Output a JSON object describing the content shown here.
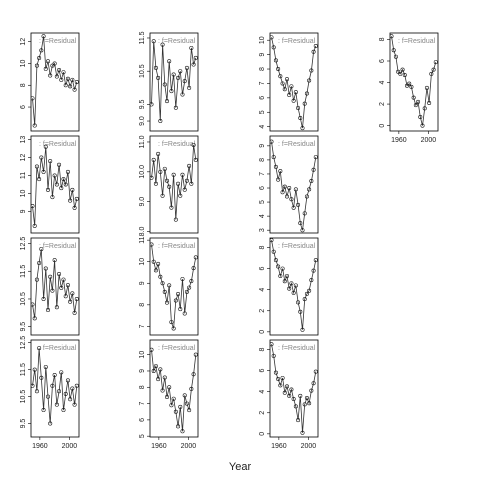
{
  "xlabel": "Year",
  "chart_data": [
    {
      "type": "line",
      "strip": ": f=Residual",
      "x": [
        1950,
        1953,
        1956,
        1959,
        1962,
        1965,
        1968,
        1971,
        1974,
        1977,
        1980,
        1983,
        1986,
        1989,
        1992,
        1995,
        1998,
        2001,
        2004,
        2007,
        2010
      ],
      "xlim": [
        1948,
        2013
      ],
      "ylim": [
        3.8,
        12.8
      ],
      "yticks": [
        6,
        8,
        10,
        12
      ],
      "values": [
        6.8,
        4.3,
        9.8,
        10.5,
        11.2,
        12.5,
        9.5,
        10.2,
        8.9,
        9.8,
        10.0,
        8.8,
        9.4,
        8.5,
        9.2,
        8.0,
        8.6,
        7.9,
        8.5,
        7.6,
        8.3
      ]
    },
    {
      "type": "line",
      "strip": ": f=Residual",
      "x": [
        1950,
        1953,
        1956,
        1959,
        1962,
        1965,
        1968,
        1971,
        1974,
        1977,
        1980,
        1983,
        1986,
        1989,
        1992,
        1995,
        1998,
        2001,
        2004,
        2007,
        2010
      ],
      "xlim": [
        1948,
        2013
      ],
      "ylim": [
        7.8,
        13.2
      ],
      "yticks": [
        9,
        10,
        11,
        12,
        13
      ],
      "values": [
        9.3,
        8.2,
        11.5,
        10.8,
        12.0,
        11.2,
        12.6,
        10.2,
        11.8,
        9.8,
        11.0,
        10.5,
        11.6,
        10.3,
        10.8,
        10.5,
        11.2,
        9.6,
        10.2,
        9.2,
        9.7
      ]
    },
    {
      "type": "line",
      "strip": ": f=Residual",
      "x": [
        1950,
        1953,
        1956,
        1959,
        1962,
        1965,
        1968,
        1971,
        1974,
        1977,
        1980,
        1983,
        1986,
        1989,
        1992,
        1995,
        1998,
        2001,
        2004,
        2007,
        2010
      ],
      "xlim": [
        1948,
        2013
      ],
      "ylim": [
        9.2,
        12.7
      ],
      "yticks": [
        9.5,
        10.5,
        11.5,
        12.5
      ],
      "values": [
        10.3,
        9.8,
        11.2,
        11.8,
        12.3,
        10.5,
        11.6,
        10.1,
        11.3,
        10.8,
        11.9,
        10.2,
        11.4,
        10.9,
        11.2,
        10.6,
        11.0,
        10.4,
        10.7,
        10.0,
        10.5
      ]
    },
    {
      "type": "line",
      "strip": ": f=Residual",
      "x": [
        1950,
        1953,
        1956,
        1959,
        1962,
        1965,
        1968,
        1971,
        1974,
        1977,
        1980,
        1983,
        1986,
        1989,
        1992,
        1995,
        1998,
        2001,
        2004,
        2007,
        2010
      ],
      "xlim": [
        1948,
        2013
      ],
      "ylim": [
        9.0,
        12.6
      ],
      "yticks": [
        9.5,
        10.5,
        11.5,
        12.5
      ],
      "xticks": [
        1960,
        2000
      ],
      "values": [
        10.9,
        11.5,
        10.7,
        12.3,
        11.2,
        10.0,
        11.6,
        10.5,
        9.5,
        10.9,
        11.3,
        10.2,
        10.7,
        11.4,
        10.0,
        10.6,
        11.1,
        10.4,
        10.8,
        10.2,
        10.9
      ]
    },
    {
      "type": "line",
      "strip": ": f=Residual",
      "x": [
        1950,
        1953,
        1956,
        1959,
        1962,
        1965,
        1968,
        1971,
        1974,
        1977,
        1980,
        1983,
        1986,
        1989,
        1992,
        1995,
        1998,
        2001,
        2004,
        2007,
        2010
      ],
      "xlim": [
        1948,
        2013
      ],
      "ylim": [
        8.7,
        11.65
      ],
      "yticks": [
        {
          "value": 9,
          "label": "9.0"
        },
        9.5,
        10.5,
        11.5
      ],
      "values": [
        9.5,
        11.4,
        10.6,
        10.3,
        9.0,
        11.3,
        10.1,
        9.6,
        10.8,
        9.9,
        10.4,
        9.4,
        10.3,
        10.5,
        9.8,
        10.2,
        10.6,
        10.0,
        11.2,
        10.7,
        10.9
      ]
    },
    {
      "type": "line",
      "strip": ": f=Residual",
      "x": [
        1950,
        1953,
        1956,
        1959,
        1962,
        1965,
        1968,
        1971,
        1974,
        1977,
        1980,
        1983,
        1986,
        1989,
        1992,
        1995,
        1998,
        2001,
        2004,
        2007,
        2010
      ],
      "xlim": [
        1948,
        2013
      ],
      "ylim": [
        7.95,
        11.2
      ],
      "yticks": [
        {
          "value": 8,
          "label": "8.0"
        },
        {
          "value": 9,
          "label": "9.0"
        },
        {
          "value": 10,
          "label": "10.0"
        },
        {
          "value": 11,
          "label": "11.0"
        }
      ],
      "values": [
        9.8,
        10.4,
        9.6,
        10.6,
        10.0,
        9.2,
        10.1,
        9.7,
        9.5,
        8.8,
        9.9,
        8.4,
        9.6,
        9.2,
        9.9,
        9.4,
        9.7,
        10.2,
        9.6,
        10.9,
        10.4
      ]
    },
    {
      "type": "line",
      "strip": ": f=Residual",
      "x": [
        1950,
        1953,
        1956,
        1959,
        1962,
        1965,
        1968,
        1971,
        1974,
        1977,
        1980,
        1983,
        1986,
        1989,
        1992,
        1995,
        1998,
        2001,
        2004,
        2007,
        2010
      ],
      "xlim": [
        1948,
        2013
      ],
      "ylim": [
        6.6,
        11.1
      ],
      "yticks": [
        7,
        8,
        9,
        10,
        11
      ],
      "values": [
        10.8,
        10.0,
        9.6,
        9.9,
        9.3,
        9.0,
        8.6,
        8.1,
        8.9,
        7.2,
        6.9,
        8.2,
        8.5,
        7.8,
        9.2,
        7.6,
        8.6,
        8.8,
        9.1,
        9.7,
        10.2
      ]
    },
    {
      "type": "line",
      "strip": ": f=Residual",
      "x": [
        1950,
        1953,
        1956,
        1959,
        1962,
        1965,
        1968,
        1971,
        1974,
        1977,
        1980,
        1983,
        1986,
        1989,
        1992,
        1995,
        1998,
        2001,
        2004,
        2007,
        2010
      ],
      "xlim": [
        1948,
        2013
      ],
      "ylim": [
        4.95,
        10.9
      ],
      "yticks": [
        5,
        6,
        7,
        8,
        9,
        10
      ],
      "xticks": [
        1960,
        2000
      ],
      "values": [
        10.3,
        9.0,
        9.3,
        8.5,
        9.1,
        7.8,
        8.6,
        7.4,
        8.0,
        6.9,
        7.3,
        6.5,
        5.6,
        6.8,
        5.3,
        7.5,
        7.0,
        6.6,
        7.9,
        8.8,
        10.0
      ]
    },
    {
      "type": "line",
      "strip": ": f=Residual",
      "x": [
        1950,
        1953,
        1956,
        1959,
        1962,
        1965,
        1968,
        1971,
        1974,
        1977,
        1980,
        1983,
        1986,
        1989,
        1992,
        1995,
        1998,
        2001,
        2004,
        2007,
        2010
      ],
      "xlim": [
        1948,
        2013
      ],
      "ylim": [
        3.7,
        10.5
      ],
      "yticks": [
        4,
        5,
        6,
        7,
        8,
        9,
        10
      ],
      "values": [
        10.2,
        9.5,
        8.6,
        8.0,
        7.5,
        7.0,
        6.6,
        7.3,
        6.2,
        6.8,
        5.8,
        6.4,
        5.3,
        4.6,
        3.9,
        5.6,
        6.3,
        7.2,
        7.9,
        9.2,
        9.6
      ]
    },
    {
      "type": "line",
      "strip": ": f=Residual",
      "x": [
        1950,
        1953,
        1956,
        1959,
        1962,
        1965,
        1968,
        1971,
        1974,
        1977,
        1980,
        1983,
        1986,
        1989,
        1992,
        1995,
        1998,
        2001,
        2004,
        2007,
        2010
      ],
      "xlim": [
        1948,
        2013
      ],
      "ylim": [
        2.8,
        9.7
      ],
      "yticks": [
        3,
        4,
        5,
        6,
        7,
        8,
        9
      ],
      "values": [
        9.3,
        8.2,
        7.5,
        6.6,
        7.2,
        5.7,
        6.1,
        5.4,
        6.0,
        5.2,
        4.6,
        5.9,
        4.8,
        3.5,
        3.0,
        4.2,
        5.4,
        5.9,
        6.5,
        7.3,
        8.2
      ]
    },
    {
      "type": "line",
      "strip": ": f=Residual",
      "x": [
        1950,
        1953,
        1956,
        1959,
        1962,
        1965,
        1968,
        1971,
        1974,
        1977,
        1980,
        1983,
        1986,
        1989,
        1992,
        1995,
        1998,
        2001,
        2004,
        2007,
        2010
      ],
      "xlim": [
        1948,
        2013
      ],
      "ylim": [
        -0.3,
        8.9
      ],
      "yticks": [
        0,
        2,
        4,
        6,
        8
      ],
      "values": [
        8.7,
        7.6,
        6.8,
        6.2,
        5.3,
        6.0,
        4.8,
        5.3,
        4.1,
        4.6,
        3.7,
        4.4,
        2.8,
        1.9,
        0.2,
        3.1,
        3.6,
        3.9,
        4.9,
        5.8,
        6.8
      ]
    },
    {
      "type": "line",
      "strip": ": f=Residual",
      "x": [
        1950,
        1953,
        1956,
        1959,
        1962,
        1965,
        1968,
        1971,
        1974,
        1977,
        1980,
        1983,
        1986,
        1989,
        1992,
        1995,
        1998,
        2001,
        2004,
        2007,
        2010
      ],
      "xlim": [
        1948,
        2013
      ],
      "ylim": [
        -0.3,
        8.9
      ],
      "yticks": [
        0,
        2,
        4,
        6,
        8
      ],
      "xticks": [
        1960,
        2000
      ],
      "values": [
        8.5,
        7.4,
        5.8,
        5.2,
        4.6,
        5.3,
        3.9,
        4.5,
        3.6,
        4.2,
        3.3,
        2.6,
        1.3,
        3.6,
        0.1,
        2.8,
        3.4,
        2.9,
        4.1,
        4.8,
        5.9
      ]
    },
    {
      "type": "line",
      "strip": ": f=Residual",
      "x": [
        1950,
        1953,
        1956,
        1959,
        1962,
        1965,
        1968,
        1971,
        1974,
        1977,
        1980,
        1983,
        1986,
        1989,
        1992,
        1995,
        1998,
        2001,
        2004,
        2007,
        2010
      ],
      "xlim": [
        1948,
        2013
      ],
      "ylim": [
        -0.5,
        8.6
      ],
      "yticks": [
        0,
        2,
        4,
        6,
        8
      ],
      "xticks": [
        1960,
        2000
      ],
      "values": [
        8.3,
        7.0,
        6.4,
        5.0,
        4.8,
        5.2,
        4.7,
        3.7,
        3.9,
        3.6,
        2.6,
        1.9,
        2.2,
        0.8,
        0.0,
        1.6,
        3.5,
        2.1,
        4.8,
        5.2,
        5.9
      ]
    }
  ]
}
